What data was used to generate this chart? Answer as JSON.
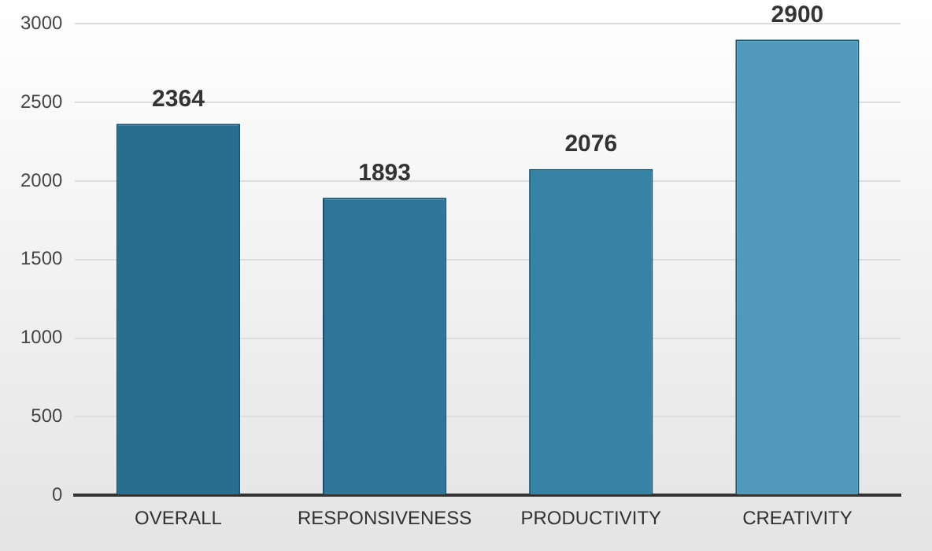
{
  "chart_data": {
    "type": "bar",
    "categories": [
      "OVERALL",
      "RESPONSIVENESS",
      "PRODUCTIVITY",
      "CREATIVITY"
    ],
    "values": [
      2364,
      1893,
      2076,
      2900
    ],
    "colors": [
      "#2b6d8e",
      "#2f7698",
      "#3783a6",
      "#5199bb"
    ],
    "ylim": [
      0,
      3000
    ],
    "yticks": [
      0,
      500,
      1000,
      1500,
      2000,
      2500,
      3000
    ],
    "grid": "y",
    "legend": false,
    "data_labels": true
  }
}
